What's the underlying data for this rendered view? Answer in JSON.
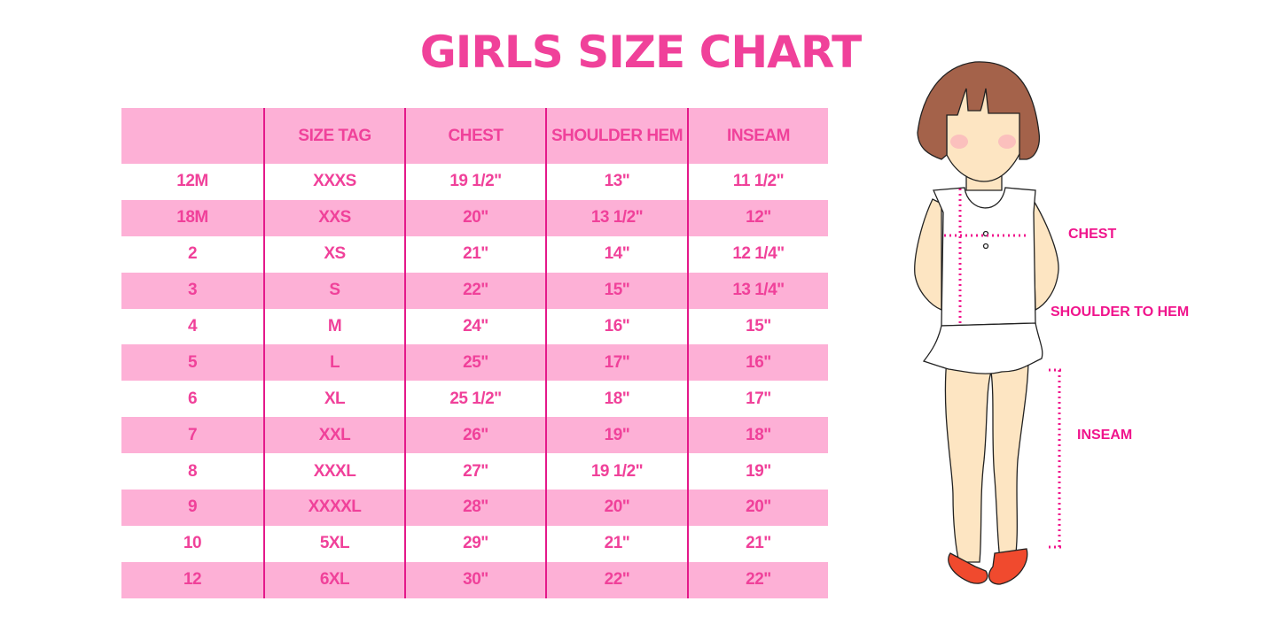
{
  "title": "GIRLS SIZE CHART",
  "table": {
    "headers": [
      "",
      "SIZE TAG",
      "CHEST",
      "SHOULDER HEM",
      "INSEAM"
    ],
    "rows": [
      [
        "12M",
        "XXXS",
        "19 1/2\"",
        "13\"",
        "11 1/2\""
      ],
      [
        "18M",
        "XXS",
        "20\"",
        "13 1/2\"",
        "12\""
      ],
      [
        "2",
        "XS",
        "21\"",
        "14\"",
        "12 1/4\""
      ],
      [
        "3",
        "S",
        "22\"",
        "15\"",
        "13 1/4\""
      ],
      [
        "4",
        "M",
        "24\"",
        "16\"",
        "15\""
      ],
      [
        "5",
        "L",
        "25\"",
        "17\"",
        "16\""
      ],
      [
        "6",
        "XL",
        "25 1/2\"",
        "18\"",
        "17\""
      ],
      [
        "7",
        "XXL",
        "26\"",
        "19\"",
        "18\""
      ],
      [
        "8",
        "XXXL",
        "27\"",
        "19 1/2\"",
        "19\""
      ],
      [
        "9",
        "XXXXL",
        "28\"",
        "20\"",
        "20\""
      ],
      [
        "10",
        "5XL",
        "29\"",
        "21\"",
        "21\""
      ],
      [
        "12",
        "6XL",
        "30\"",
        "22\"",
        "22\""
      ]
    ]
  },
  "illustration": {
    "labels": {
      "chest": "CHEST",
      "shoulder": "SHOULDER TO HEM",
      "inseam": "INSEAM"
    }
  },
  "colors": {
    "accent": "#f0419a",
    "row_pink": "#fdb0d6",
    "divider": "#e4198a"
  }
}
